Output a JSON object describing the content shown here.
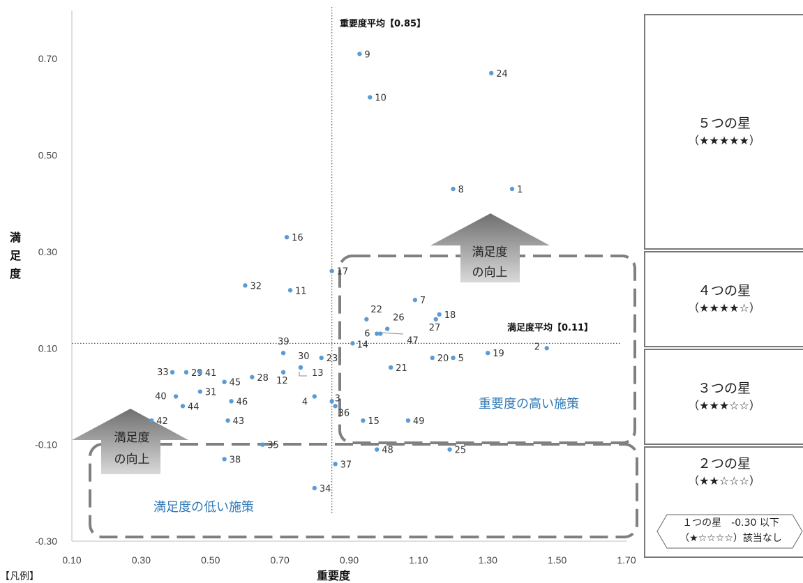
{
  "chart_data": {
    "type": "scatter",
    "xlabel": "重要度",
    "ylabel": "満足度",
    "xlim": [
      0.1,
      1.7
    ],
    "ylim": [
      -0.3,
      0.8
    ],
    "x_ticks": [
      "0.10",
      "0.30",
      "0.50",
      "0.70",
      "0.90",
      "1.10",
      "1.30",
      "1.50",
      "1.70"
    ],
    "y_ticks": [
      "-0.30",
      "-0.10",
      "0.10",
      "0.30",
      "0.50",
      "0.70"
    ],
    "x_tick_values": [
      0.1,
      0.3,
      0.5,
      0.7,
      0.9,
      1.1,
      1.3,
      1.5,
      1.7
    ],
    "y_tick_values": [
      -0.3,
      -0.1,
      0.1,
      0.3,
      0.5,
      0.7
    ],
    "importance_avg": {
      "value": 0.85,
      "label": "重要度平均【0.85】"
    },
    "satisfaction_avg": {
      "value": 0.11,
      "label": "満足度平均【0.11】"
    },
    "point_color": "#5b9bd5",
    "points": [
      {
        "label": "1",
        "x": 1.37,
        "y": 0.43
      },
      {
        "label": "2",
        "x": 1.47,
        "y": 0.1
      },
      {
        "label": "3",
        "x": 0.85,
        "y": -0.01
      },
      {
        "label": "4",
        "x": 0.8,
        "y": 0.0
      },
      {
        "label": "5",
        "x": 1.2,
        "y": 0.08
      },
      {
        "label": "6",
        "x": 0.98,
        "y": 0.13
      },
      {
        "label": "7",
        "x": 1.09,
        "y": 0.2
      },
      {
        "label": "8",
        "x": 1.2,
        "y": 0.43
      },
      {
        "label": "9",
        "x": 0.93,
        "y": 0.71
      },
      {
        "label": "10",
        "x": 0.96,
        "y": 0.62
      },
      {
        "label": "11",
        "x": 0.73,
        "y": 0.22
      },
      {
        "label": "12",
        "x": 0.71,
        "y": 0.05
      },
      {
        "label": "13",
        "x": 0.76,
        "y": 0.06
      },
      {
        "label": "14",
        "x": 0.91,
        "y": 0.11
      },
      {
        "label": "15",
        "x": 0.94,
        "y": -0.05
      },
      {
        "label": "16",
        "x": 0.72,
        "y": 0.33
      },
      {
        "label": "17",
        "x": 0.85,
        "y": 0.26
      },
      {
        "label": "18",
        "x": 1.16,
        "y": 0.17
      },
      {
        "label": "19",
        "x": 1.3,
        "y": 0.09
      },
      {
        "label": "20",
        "x": 1.14,
        "y": 0.08
      },
      {
        "label": "21",
        "x": 1.02,
        "y": 0.06
      },
      {
        "label": "22",
        "x": 0.95,
        "y": 0.16
      },
      {
        "label": "23",
        "x": 0.82,
        "y": 0.08
      },
      {
        "label": "24",
        "x": 1.31,
        "y": 0.67
      },
      {
        "label": "25",
        "x": 1.19,
        "y": -0.11
      },
      {
        "label": "26",
        "x": 1.01,
        "y": 0.14
      },
      {
        "label": "27",
        "x": 1.15,
        "y": 0.16
      },
      {
        "label": "28",
        "x": 0.62,
        "y": 0.04
      },
      {
        "label": "29",
        "x": 0.43,
        "y": 0.05
      },
      {
        "label": "30",
        "x": 0.76,
        "y": 0.06
      },
      {
        "label": "31",
        "x": 0.47,
        "y": 0.01
      },
      {
        "label": "32",
        "x": 0.6,
        "y": 0.23
      },
      {
        "label": "33",
        "x": 0.39,
        "y": 0.05
      },
      {
        "label": "34",
        "x": 0.8,
        "y": -0.19
      },
      {
        "label": "35",
        "x": 0.65,
        "y": -0.1
      },
      {
        "label": "36",
        "x": 0.86,
        "y": -0.02
      },
      {
        "label": "37",
        "x": 0.86,
        "y": -0.14
      },
      {
        "label": "38",
        "x": 0.54,
        "y": -0.13
      },
      {
        "label": "39",
        "x": 0.71,
        "y": 0.09
      },
      {
        "label": "40",
        "x": 0.4,
        "y": 0.0
      },
      {
        "label": "41",
        "x": 0.47,
        "y": 0.05
      },
      {
        "label": "42",
        "x": 0.33,
        "y": -0.05
      },
      {
        "label": "43",
        "x": 0.55,
        "y": -0.05
      },
      {
        "label": "44",
        "x": 0.42,
        "y": -0.02
      },
      {
        "label": "45",
        "x": 0.54,
        "y": 0.03
      },
      {
        "label": "46",
        "x": 0.56,
        "y": -0.01
      },
      {
        "label": "47",
        "x": 0.99,
        "y": 0.13
      },
      {
        "label": "48",
        "x": 0.98,
        "y": -0.11
      },
      {
        "label": "49",
        "x": 1.07,
        "y": -0.05
      }
    ]
  },
  "annotations": {
    "arrow_high": {
      "line1": "満足度",
      "line2": "の向上"
    },
    "arrow_low": {
      "line1": "満足度",
      "line2": "の向上"
    },
    "region_high": "重要度の高い施策",
    "region_low": "満足度の低い施策"
  },
  "ratings": [
    {
      "title": "５つの星",
      "stars": "（★★★★★）"
    },
    {
      "title": "４つの星",
      "stars": "（★★★★☆）"
    },
    {
      "title": "３つの星",
      "stars": "（★★★☆☆）"
    },
    {
      "title": "２つの星",
      "stars": "（★★☆☆☆）"
    }
  ],
  "rating_note": {
    "line1": "１つの星　-0.30 以下",
    "line2": "（★☆☆☆☆）該当なし"
  },
  "legend_label": "【凡例】",
  "colors": {
    "accent_blue": "#2f78b5",
    "dash_gray": "#808080",
    "arrow_gray": "#8c8c8c"
  }
}
